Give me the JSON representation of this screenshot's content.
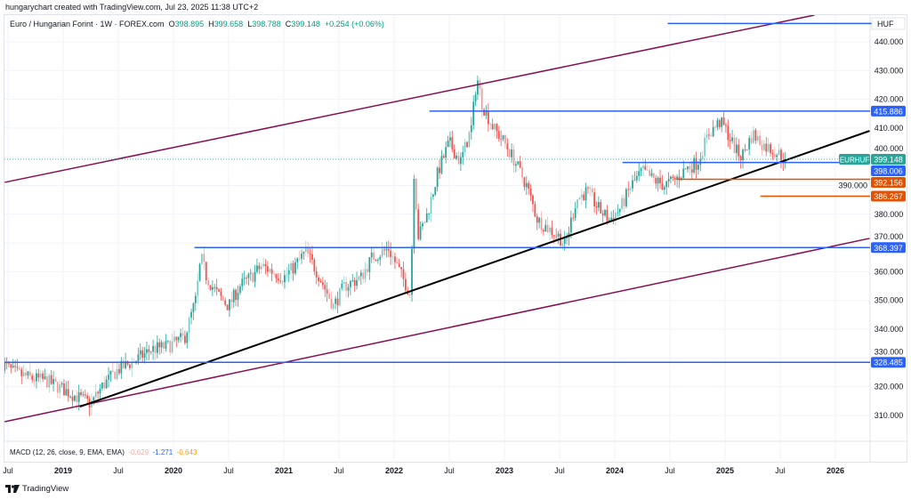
{
  "caption": "hungarychart created with TradingView.com, Jul 23, 2025 11:38 UTC+2",
  "legend": {
    "symbol": "Euro / Hungarian Forint · 1W · FOREX.com",
    "o_label": "O",
    "open": "398.895",
    "h_label": "H",
    "high": "399.658",
    "l_label": "L",
    "low": "398.788",
    "c_label": "C",
    "close": "399.148",
    "change": "+0.254 (+0.06%)"
  },
  "macd": {
    "label": "MACD (12, 26, close, 9, EMA, EMA)",
    "hist": "-0.629",
    "macd": "-1.271",
    "signal": "-0.643"
  },
  "currency": "HUF",
  "brand": "TradingView",
  "colors": {
    "up": "#26a69a",
    "down": "#ef5350",
    "level": "#2962ff",
    "support": "#e65100",
    "channel": "#880e4f",
    "trend": "#000000",
    "last": "#26a69a"
  },
  "chart_data": {
    "type": "candlestick",
    "symbol_tag": "EURHUF",
    "ylim": [
      305,
      447
    ],
    "yticks": [
      "310.000",
      "320.000",
      "330.000",
      "340.000",
      "350.000",
      "360.000",
      "370.000",
      "380.000",
      "390.000",
      "400.000",
      "410.000",
      "420.000",
      "430.000",
      "440.000"
    ],
    "xticks": [
      {
        "t": 2018.5,
        "label": "Jul"
      },
      {
        "t": 2019,
        "label": "2019"
      },
      {
        "t": 2019.5,
        "label": "Jul"
      },
      {
        "t": 2020,
        "label": "2020"
      },
      {
        "t": 2020.5,
        "label": "Jul"
      },
      {
        "t": 2021,
        "label": "2021"
      },
      {
        "t": 2021.5,
        "label": "Jul"
      },
      {
        "t": 2022,
        "label": "2022"
      },
      {
        "t": 2022.5,
        "label": "Jul"
      },
      {
        "t": 2023,
        "label": "2023"
      },
      {
        "t": 2023.5,
        "label": "Jul"
      },
      {
        "t": 2024,
        "label": "2024"
      },
      {
        "t": 2024.5,
        "label": "Jul"
      },
      {
        "t": 2025,
        "label": "2025"
      },
      {
        "t": 2025.5,
        "label": "Jul"
      },
      {
        "t": 2026,
        "label": "2026"
      }
    ],
    "approx_close_path": [
      [
        2018.45,
        328
      ],
      [
        2018.55,
        325
      ],
      [
        2018.7,
        323
      ],
      [
        2018.85,
        322
      ],
      [
        2019.0,
        319
      ],
      [
        2019.15,
        316
      ],
      [
        2019.25,
        314
      ],
      [
        2019.35,
        320
      ],
      [
        2019.5,
        326
      ],
      [
        2019.65,
        329
      ],
      [
        2019.8,
        333
      ],
      [
        2019.95,
        334
      ],
      [
        2020.1,
        337
      ],
      [
        2020.2,
        350
      ],
      [
        2020.25,
        365
      ],
      [
        2020.3,
        358
      ],
      [
        2020.4,
        352
      ],
      [
        2020.5,
        348
      ],
      [
        2020.6,
        355
      ],
      [
        2020.7,
        358
      ],
      [
        2020.8,
        362
      ],
      [
        2020.9,
        360
      ],
      [
        2021.0,
        358
      ],
      [
        2021.1,
        362
      ],
      [
        2021.2,
        367
      ],
      [
        2021.3,
        360
      ],
      [
        2021.4,
        352
      ],
      [
        2021.45,
        348
      ],
      [
        2021.55,
        355
      ],
      [
        2021.7,
        358
      ],
      [
        2021.8,
        365
      ],
      [
        2021.95,
        368
      ],
      [
        2022.05,
        360
      ],
      [
        2022.15,
        352
      ],
      [
        2022.18,
        395
      ],
      [
        2022.22,
        372
      ],
      [
        2022.3,
        380
      ],
      [
        2022.4,
        395
      ],
      [
        2022.5,
        405
      ],
      [
        2022.6,
        398
      ],
      [
        2022.7,
        410
      ],
      [
        2022.75,
        428
      ],
      [
        2022.8,
        418
      ],
      [
        2022.9,
        410
      ],
      [
        2023.0,
        405
      ],
      [
        2023.1,
        398
      ],
      [
        2023.2,
        390
      ],
      [
        2023.3,
        378
      ],
      [
        2023.4,
        375
      ],
      [
        2023.5,
        372
      ],
      [
        2023.55,
        369
      ],
      [
        2023.65,
        385
      ],
      [
        2023.75,
        388
      ],
      [
        2023.85,
        382
      ],
      [
        2023.95,
        378
      ],
      [
        2024.05,
        382
      ],
      [
        2024.15,
        390
      ],
      [
        2024.25,
        395
      ],
      [
        2024.35,
        392
      ],
      [
        2024.45,
        390
      ],
      [
        2024.55,
        392
      ],
      [
        2024.65,
        396
      ],
      [
        2024.75,
        398
      ],
      [
        2024.85,
        408
      ],
      [
        2024.95,
        412
      ],
      [
        2025.0,
        410
      ],
      [
        2025.1,
        402
      ],
      [
        2025.15,
        400
      ],
      [
        2025.25,
        408
      ],
      [
        2025.35,
        404
      ],
      [
        2025.45,
        402
      ],
      [
        2025.55,
        399.148
      ]
    ],
    "horizontal_levels": [
      {
        "price": 415.886,
        "label": "415.886",
        "from": 2022.32,
        "color": "level"
      },
      {
        "price": 398.006,
        "label": "398.006",
        "from": 2024.07,
        "color": "level"
      },
      {
        "price": 392.156,
        "label": "392.156",
        "from": 2024.56,
        "color": "support"
      },
      {
        "price": 386.267,
        "label": "386.267",
        "from": 2025.32,
        "color": "support"
      },
      {
        "price": 368.397,
        "label": "368.397",
        "from": 2020.19,
        "color": "level"
      },
      {
        "price": 328.485,
        "label": "328.485",
        "from": 2018.4,
        "color": "level"
      }
    ],
    "top_line": {
      "price": 446.4,
      "from": 2024.48,
      "to": 2026.33
    },
    "last_price": {
      "price": 399.148,
      "label": "399.148"
    },
    "trend_lines": [
      {
        "name": "upper-channel",
        "p1": [
          2018.47,
          391.1
        ],
        "p2": [
          2025.81,
          449.3
        ],
        "color": "channel"
      },
      {
        "name": "lower-channel",
        "p1": [
          2018.47,
          307.8
        ],
        "p2": [
          2026.31,
          371.6
        ],
        "color": "channel"
      },
      {
        "name": "support-trendline",
        "p1": [
          2019.15,
          313.0
        ],
        "p2": [
          2026.31,
          409.0
        ],
        "color": "trend"
      }
    ]
  }
}
